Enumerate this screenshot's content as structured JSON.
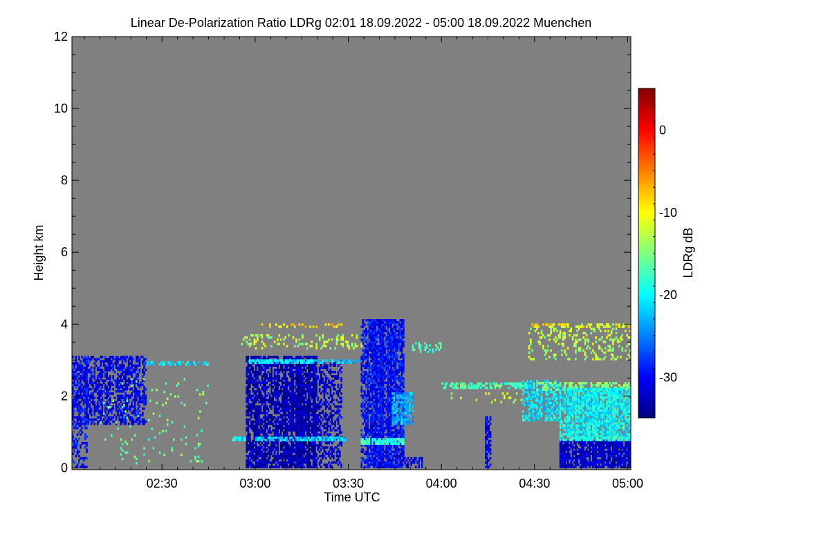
{
  "chart_data": {
    "type": "heatmap",
    "title": "Linear De-Polarization Ratio LDRg   02:01 18.09.2022 - 05:00 18.09.2022 Muenchen",
    "xlabel": "Time UTC",
    "ylabel": "Height km",
    "colorbar_label": "LDRg dB",
    "xlim_minutes_after_0200": [
      1,
      181
    ],
    "ylim_km": [
      -0.05,
      12
    ],
    "x_ticks": [
      {
        "label": "02:30",
        "min": 30
      },
      {
        "label": "03:00",
        "min": 60
      },
      {
        "label": "03:30",
        "min": 90
      },
      {
        "label": "04:00",
        "min": 120
      },
      {
        "label": "04:30",
        "min": 150
      },
      {
        "label": "05:00",
        "min": 180
      }
    ],
    "y_ticks": [
      {
        "label": "0",
        "km": 0
      },
      {
        "label": "2",
        "km": 2
      },
      {
        "label": "4",
        "km": 4
      },
      {
        "label": "6",
        "km": 6
      },
      {
        "label": "8",
        "km": 8
      },
      {
        "label": "10",
        "km": 10
      },
      {
        "label": "12",
        "km": 12
      }
    ],
    "colorbar_range_db": [
      -35,
      5
    ],
    "colorbar_ticks": [
      {
        "label": "0",
        "db": 0
      },
      {
        "label": "-10",
        "db": -10
      },
      {
        "label": "-20",
        "db": -20
      },
      {
        "label": "-30",
        "db": -30
      }
    ],
    "colormap": "jet",
    "background_color": "#808080",
    "features": [
      {
        "t": [
          1,
          25
        ],
        "h": [
          1.2,
          3.1
        ],
        "db": -31,
        "density": 0.55
      },
      {
        "t": [
          1,
          6
        ],
        "h": [
          0.0,
          3.0
        ],
        "db": -30,
        "density": 0.35
      },
      {
        "t": [
          25,
          45
        ],
        "h": [
          2.85,
          2.95
        ],
        "db": -21,
        "density": 0.5
      },
      {
        "t": [
          10,
          45
        ],
        "h": [
          0.1,
          2.5
        ],
        "db": -16,
        "density": 0.03
      },
      {
        "t": [
          57,
          80
        ],
        "h": [
          0.0,
          3.1
        ],
        "db": -33,
        "density": 0.8
      },
      {
        "t": [
          80,
          88
        ],
        "h": [
          0.0,
          2.9
        ],
        "db": -32,
        "density": 0.45
      },
      {
        "t": [
          58,
          78
        ],
        "h": [
          2.9,
          3.0
        ],
        "db": -21,
        "density": 0.8
      },
      {
        "t": [
          78,
          94
        ],
        "h": [
          2.9,
          3.0
        ],
        "db": -22,
        "density": 0.6
      },
      {
        "t": [
          60,
          90
        ],
        "h": [
          0.75,
          0.85
        ],
        "db": -22,
        "density": 0.85
      },
      {
        "t": [
          52,
          57
        ],
        "h": [
          0.75,
          0.85
        ],
        "db": -20,
        "density": 0.8
      },
      {
        "t": [
          55,
          95
        ],
        "h": [
          3.3,
          3.7
        ],
        "db": -13,
        "density": 0.2
      },
      {
        "t": [
          62,
          88
        ],
        "h": [
          3.9,
          4.0
        ],
        "db": -9,
        "density": 0.25
      },
      {
        "t": [
          94,
          108
        ],
        "h": [
          0.0,
          4.1
        ],
        "db": -30,
        "density": 0.82
      },
      {
        "t": [
          94,
          108
        ],
        "h": [
          0.65,
          0.8
        ],
        "db": -18,
        "density": 0.9
      },
      {
        "t": [
          104,
          111
        ],
        "h": [
          1.2,
          2.1
        ],
        "db": -23,
        "density": 0.7
      },
      {
        "t": [
          108,
          114
        ],
        "h": [
          0.0,
          0.3
        ],
        "db": -31,
        "density": 0.5
      },
      {
        "t": [
          110,
          120
        ],
        "h": [
          3.2,
          3.5
        ],
        "db": -17,
        "density": 0.3
      },
      {
        "t": [
          120,
          150
        ],
        "h": [
          2.2,
          2.35
        ],
        "db": -17,
        "density": 0.6
      },
      {
        "t": [
          120,
          150
        ],
        "h": [
          1.8,
          2.1
        ],
        "db": -12,
        "density": 0.08
      },
      {
        "t": [
          134,
          136
        ],
        "h": [
          0.0,
          1.4
        ],
        "db": -31,
        "density": 0.6
      },
      {
        "t": [
          146,
          158
        ],
        "h": [
          1.3,
          2.4
        ],
        "db": -21,
        "density": 0.6
      },
      {
        "t": [
          150,
          181
        ],
        "h": [
          2.15,
          2.35
        ],
        "db": -15,
        "density": 0.5
      },
      {
        "t": [
          158,
          181
        ],
        "h": [
          0.0,
          0.75
        ],
        "db": -32,
        "density": 0.85
      },
      {
        "t": [
          158,
          181
        ],
        "h": [
          0.85,
          2.2
        ],
        "db": -20,
        "density": 0.75
      },
      {
        "t": [
          158,
          181
        ],
        "h": [
          0.75,
          0.85
        ],
        "db": -19,
        "density": 0.9
      },
      {
        "t": [
          148,
          181
        ],
        "h": [
          3.0,
          4.0
        ],
        "db": -13,
        "density": 0.22
      },
      {
        "t": [
          148,
          181
        ],
        "h": [
          3.9,
          4.0
        ],
        "db": -9,
        "density": 0.4
      }
    ]
  }
}
